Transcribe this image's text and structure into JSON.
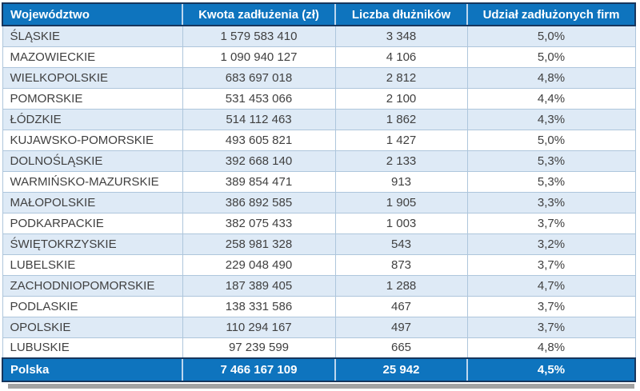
{
  "chart_data": {
    "type": "table",
    "title": "",
    "columns": {
      "region": "Województwo",
      "amount": "Kwota zadłużenia (zł)",
      "debtors": "Liczba dłużników",
      "share": "Udział zadłużonych firm"
    },
    "rows": [
      {
        "region": "ŚLĄSKIE",
        "amount": "1 579 583 410",
        "debtors": "3 348",
        "share": "5,0%"
      },
      {
        "region": "MAZOWIECKIE",
        "amount": "1 090 940 127",
        "debtors": "4 106",
        "share": "5,0%"
      },
      {
        "region": "WIELKOPOLSKIE",
        "amount": "683 697 018",
        "debtors": "2 812",
        "share": "4,8%"
      },
      {
        "region": "POMORSKIE",
        "amount": "531 453 066",
        "debtors": "2 100",
        "share": "4,4%"
      },
      {
        "region": "ŁÓDZKIE",
        "amount": "514 112 463",
        "debtors": "1 862",
        "share": "4,3%"
      },
      {
        "region": "KUJAWSKO-POMORSKIE",
        "amount": "493 605 821",
        "debtors": "1 427",
        "share": "5,0%"
      },
      {
        "region": "DOLNOŚLĄSKIE",
        "amount": "392 668 140",
        "debtors": "2 133",
        "share": "5,3%"
      },
      {
        "region": "WARMIŃSKO-MAZURSKIE",
        "amount": "389 854 471",
        "debtors": "913",
        "share": "5,3%"
      },
      {
        "region": "MAŁOPOLSKIE",
        "amount": "386 892 585",
        "debtors": "1 905",
        "share": "3,3%"
      },
      {
        "region": "PODKARPACKIE",
        "amount": "382 075 433",
        "debtors": "1 003",
        "share": "3,7%"
      },
      {
        "region": "ŚWIĘTOKRZYSKIE",
        "amount": "258 981 328",
        "debtors": "543",
        "share": "3,2%"
      },
      {
        "region": "LUBELSKIE",
        "amount": "229 048 490",
        "debtors": "873",
        "share": "3,7%"
      },
      {
        "region": "ZACHODNIOPOMORSKIE",
        "amount": "187 389 405",
        "debtors": "1 288",
        "share": "4,7%"
      },
      {
        "region": "PODLASKIE",
        "amount": "138 331 586",
        "debtors": "467",
        "share": "3,7%"
      },
      {
        "region": "OPOLSKIE",
        "amount": "110 294 167",
        "debtors": "497",
        "share": "3,7%"
      },
      {
        "region": "LUBUSKIE",
        "amount": "97 239 599",
        "debtors": "665",
        "share": "4,8%"
      }
    ],
    "total": {
      "region": "Polska",
      "amount": "7 466 167 109",
      "debtors": "25 942",
      "share": "4,5%"
    },
    "layout": {
      "header_position": "top",
      "alternating_rows": true,
      "first_column_align": "left",
      "value_columns_align": "center"
    },
    "colors": {
      "header_bg": "#0E74BE",
      "header_text": "#FFFFFF",
      "outer_border": "#17365D",
      "header_divider": "#BDD7EE",
      "grid_line": "#AEC6DC",
      "alt_row_bg": "#DEEAF6",
      "row_bg": "#FFFFFF",
      "body_text": "#404040",
      "total_bg": "#0E74BE",
      "shadow": "#A3A3A3"
    }
  }
}
